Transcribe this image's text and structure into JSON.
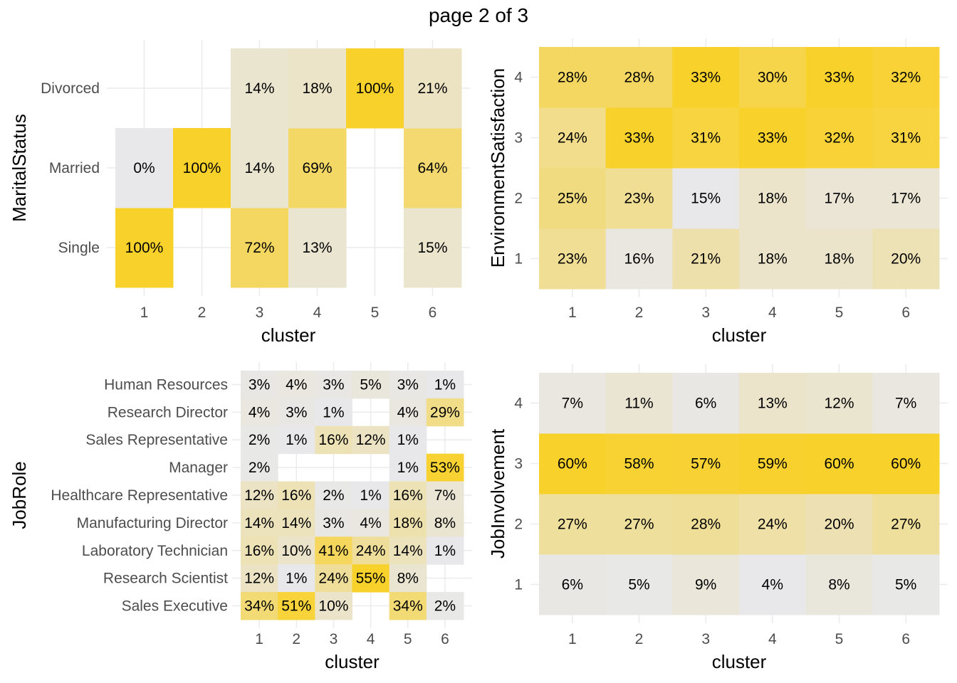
{
  "title": "page 2 of 3",
  "colors": {
    "low": "#e8e8ea",
    "high": "#f9d12b",
    "grid": "#ebebeb"
  },
  "chart_data": [
    {
      "type": "heatmap",
      "xlabel": "cluster",
      "ylabel": "MaritalStatus",
      "x": [
        "1",
        "2",
        "3",
        "4",
        "5",
        "6"
      ],
      "y": [
        "Single",
        "Married",
        "Divorced"
      ],
      "cells": [
        {
          "x": "1",
          "y": "Single",
          "value": 100,
          "label": "100%"
        },
        {
          "x": "3",
          "y": "Single",
          "value": 72,
          "label": "72%"
        },
        {
          "x": "4",
          "y": "Single",
          "value": 13,
          "label": "13%"
        },
        {
          "x": "6",
          "y": "Single",
          "value": 15,
          "label": "15%"
        },
        {
          "x": "1",
          "y": "Married",
          "value": 0,
          "label": "0%"
        },
        {
          "x": "2",
          "y": "Married",
          "value": 100,
          "label": "100%"
        },
        {
          "x": "3",
          "y": "Married",
          "value": 14,
          "label": "14%"
        },
        {
          "x": "4",
          "y": "Married",
          "value": 69,
          "label": "69%"
        },
        {
          "x": "6",
          "y": "Married",
          "value": 64,
          "label": "64%"
        },
        {
          "x": "3",
          "y": "Divorced",
          "value": 14,
          "label": "14%"
        },
        {
          "x": "4",
          "y": "Divorced",
          "value": 18,
          "label": "18%"
        },
        {
          "x": "5",
          "y": "Divorced",
          "value": 100,
          "label": "100%"
        },
        {
          "x": "6",
          "y": "Divorced",
          "value": 21,
          "label": "21%"
        }
      ]
    },
    {
      "type": "heatmap",
      "xlabel": "cluster",
      "ylabel": "EnvironmentSatisfaction",
      "x": [
        "1",
        "2",
        "3",
        "4",
        "5",
        "6"
      ],
      "y": [
        "1",
        "2",
        "3",
        "4"
      ],
      "cells": [
        {
          "x": "1",
          "y": "1",
          "value": 23,
          "label": "23%"
        },
        {
          "x": "2",
          "y": "1",
          "value": 16,
          "label": "16%"
        },
        {
          "x": "3",
          "y": "1",
          "value": 21,
          "label": "21%"
        },
        {
          "x": "4",
          "y": "1",
          "value": 18,
          "label": "18%"
        },
        {
          "x": "5",
          "y": "1",
          "value": 18,
          "label": "18%"
        },
        {
          "x": "6",
          "y": "1",
          "value": 20,
          "label": "20%"
        },
        {
          "x": "1",
          "y": "2",
          "value": 25,
          "label": "25%"
        },
        {
          "x": "2",
          "y": "2",
          "value": 23,
          "label": "23%"
        },
        {
          "x": "3",
          "y": "2",
          "value": 15,
          "label": "15%"
        },
        {
          "x": "4",
          "y": "2",
          "value": 18,
          "label": "18%"
        },
        {
          "x": "5",
          "y": "2",
          "value": 17,
          "label": "17%"
        },
        {
          "x": "6",
          "y": "2",
          "value": 17,
          "label": "17%"
        },
        {
          "x": "1",
          "y": "3",
          "value": 24,
          "label": "24%"
        },
        {
          "x": "2",
          "y": "3",
          "value": 33,
          "label": "33%"
        },
        {
          "x": "3",
          "y": "3",
          "value": 31,
          "label": "31%"
        },
        {
          "x": "4",
          "y": "3",
          "value": 33,
          "label": "33%"
        },
        {
          "x": "5",
          "y": "3",
          "value": 32,
          "label": "32%"
        },
        {
          "x": "6",
          "y": "3",
          "value": 31,
          "label": "31%"
        },
        {
          "x": "1",
          "y": "4",
          "value": 28,
          "label": "28%"
        },
        {
          "x": "2",
          "y": "4",
          "value": 28,
          "label": "28%"
        },
        {
          "x": "3",
          "y": "4",
          "value": 33,
          "label": "33%"
        },
        {
          "x": "4",
          "y": "4",
          "value": 30,
          "label": "30%"
        },
        {
          "x": "5",
          "y": "4",
          "value": 33,
          "label": "33%"
        },
        {
          "x": "6",
          "y": "4",
          "value": 32,
          "label": "32%"
        }
      ]
    },
    {
      "type": "heatmap",
      "xlabel": "cluster",
      "ylabel": "JobRole",
      "x": [
        "1",
        "2",
        "3",
        "4",
        "5",
        "6"
      ],
      "y": [
        "Sales Executive",
        "Research Scientist",
        "Laboratory Technician",
        "Manufacturing Director",
        "Healthcare Representative",
        "Manager",
        "Sales Representative",
        "Research Director",
        "Human Resources"
      ],
      "cells": [
        {
          "x": "1",
          "y": "Human Resources",
          "value": 3,
          "label": "3%"
        },
        {
          "x": "2",
          "y": "Human Resources",
          "value": 4,
          "label": "4%"
        },
        {
          "x": "3",
          "y": "Human Resources",
          "value": 3,
          "label": "3%"
        },
        {
          "x": "4",
          "y": "Human Resources",
          "value": 5,
          "label": "5%"
        },
        {
          "x": "5",
          "y": "Human Resources",
          "value": 3,
          "label": "3%"
        },
        {
          "x": "6",
          "y": "Human Resources",
          "value": 1,
          "label": "1%"
        },
        {
          "x": "1",
          "y": "Research Director",
          "value": 4,
          "label": "4%"
        },
        {
          "x": "2",
          "y": "Research Director",
          "value": 3,
          "label": "3%"
        },
        {
          "x": "3",
          "y": "Research Director",
          "value": 1,
          "label": "1%"
        },
        {
          "x": "5",
          "y": "Research Director",
          "value": 4,
          "label": "4%"
        },
        {
          "x": "6",
          "y": "Research Director",
          "value": 29,
          "label": "29%"
        },
        {
          "x": "1",
          "y": "Sales Representative",
          "value": 2,
          "label": "2%"
        },
        {
          "x": "2",
          "y": "Sales Representative",
          "value": 1,
          "label": "1%"
        },
        {
          "x": "3",
          "y": "Sales Representative",
          "value": 16,
          "label": "16%"
        },
        {
          "x": "4",
          "y": "Sales Representative",
          "value": 12,
          "label": "12%"
        },
        {
          "x": "5",
          "y": "Sales Representative",
          "value": 1,
          "label": "1%"
        },
        {
          "x": "1",
          "y": "Manager",
          "value": 2,
          "label": "2%"
        },
        {
          "x": "5",
          "y": "Manager",
          "value": 1,
          "label": "1%"
        },
        {
          "x": "6",
          "y": "Manager",
          "value": 53,
          "label": "53%"
        },
        {
          "x": "1",
          "y": "Healthcare Representative",
          "value": 12,
          "label": "12%"
        },
        {
          "x": "2",
          "y": "Healthcare Representative",
          "value": 16,
          "label": "16%"
        },
        {
          "x": "3",
          "y": "Healthcare Representative",
          "value": 2,
          "label": "2%"
        },
        {
          "x": "4",
          "y": "Healthcare Representative",
          "value": 1,
          "label": "1%"
        },
        {
          "x": "5",
          "y": "Healthcare Representative",
          "value": 16,
          "label": "16%"
        },
        {
          "x": "6",
          "y": "Healthcare Representative",
          "value": 7,
          "label": "7%"
        },
        {
          "x": "1",
          "y": "Manufacturing Director",
          "value": 14,
          "label": "14%"
        },
        {
          "x": "2",
          "y": "Manufacturing Director",
          "value": 14,
          "label": "14%"
        },
        {
          "x": "3",
          "y": "Manufacturing Director",
          "value": 3,
          "label": "3%"
        },
        {
          "x": "4",
          "y": "Manufacturing Director",
          "value": 4,
          "label": "4%"
        },
        {
          "x": "5",
          "y": "Manufacturing Director",
          "value": 18,
          "label": "18%"
        },
        {
          "x": "6",
          "y": "Manufacturing Director",
          "value": 8,
          "label": "8%"
        },
        {
          "x": "1",
          "y": "Laboratory Technician",
          "value": 16,
          "label": "16%"
        },
        {
          "x": "2",
          "y": "Laboratory Technician",
          "value": 10,
          "label": "10%"
        },
        {
          "x": "3",
          "y": "Laboratory Technician",
          "value": 41,
          "label": "41%"
        },
        {
          "x": "4",
          "y": "Laboratory Technician",
          "value": 24,
          "label": "24%"
        },
        {
          "x": "5",
          "y": "Laboratory Technician",
          "value": 14,
          "label": "14%"
        },
        {
          "x": "6",
          "y": "Laboratory Technician",
          "value": 1,
          "label": "1%"
        },
        {
          "x": "1",
          "y": "Research Scientist",
          "value": 12,
          "label": "12%"
        },
        {
          "x": "2",
          "y": "Research Scientist",
          "value": 1,
          "label": "1%"
        },
        {
          "x": "3",
          "y": "Research Scientist",
          "value": 24,
          "label": "24%"
        },
        {
          "x": "4",
          "y": "Research Scientist",
          "value": 55,
          "label": "55%"
        },
        {
          "x": "5",
          "y": "Research Scientist",
          "value": 8,
          "label": "8%"
        },
        {
          "x": "1",
          "y": "Sales Executive",
          "value": 34,
          "label": "34%"
        },
        {
          "x": "2",
          "y": "Sales Executive",
          "value": 51,
          "label": "51%"
        },
        {
          "x": "3",
          "y": "Sales Executive",
          "value": 10,
          "label": "10%"
        },
        {
          "x": "5",
          "y": "Sales Executive",
          "value": 34,
          "label": "34%"
        },
        {
          "x": "6",
          "y": "Sales Executive",
          "value": 2,
          "label": "2%"
        }
      ]
    },
    {
      "type": "heatmap",
      "xlabel": "cluster",
      "ylabel": "JobInvolvement",
      "x": [
        "1",
        "2",
        "3",
        "4",
        "5",
        "6"
      ],
      "y": [
        "1",
        "2",
        "3",
        "4"
      ],
      "cells": [
        {
          "x": "1",
          "y": "1",
          "value": 6,
          "label": "6%"
        },
        {
          "x": "2",
          "y": "1",
          "value": 5,
          "label": "5%"
        },
        {
          "x": "3",
          "y": "1",
          "value": 9,
          "label": "9%"
        },
        {
          "x": "4",
          "y": "1",
          "value": 4,
          "label": "4%"
        },
        {
          "x": "5",
          "y": "1",
          "value": 8,
          "label": "8%"
        },
        {
          "x": "6",
          "y": "1",
          "value": 5,
          "label": "5%"
        },
        {
          "x": "1",
          "y": "2",
          "value": 27,
          "label": "27%"
        },
        {
          "x": "2",
          "y": "2",
          "value": 27,
          "label": "27%"
        },
        {
          "x": "3",
          "y": "2",
          "value": 28,
          "label": "28%"
        },
        {
          "x": "4",
          "y": "2",
          "value": 24,
          "label": "24%"
        },
        {
          "x": "5",
          "y": "2",
          "value": 20,
          "label": "20%"
        },
        {
          "x": "6",
          "y": "2",
          "value": 27,
          "label": "27%"
        },
        {
          "x": "1",
          "y": "3",
          "value": 60,
          "label": "60%"
        },
        {
          "x": "2",
          "y": "3",
          "value": 58,
          "label": "58%"
        },
        {
          "x": "3",
          "y": "3",
          "value": 57,
          "label": "57%"
        },
        {
          "x": "4",
          "y": "3",
          "value": 59,
          "label": "59%"
        },
        {
          "x": "5",
          "y": "3",
          "value": 60,
          "label": "60%"
        },
        {
          "x": "6",
          "y": "3",
          "value": 60,
          "label": "60%"
        },
        {
          "x": "1",
          "y": "4",
          "value": 7,
          "label": "7%"
        },
        {
          "x": "2",
          "y": "4",
          "value": 11,
          "label": "11%"
        },
        {
          "x": "3",
          "y": "4",
          "value": 6,
          "label": "6%"
        },
        {
          "x": "4",
          "y": "4",
          "value": 13,
          "label": "13%"
        },
        {
          "x": "5",
          "y": "4",
          "value": 12,
          "label": "12%"
        },
        {
          "x": "6",
          "y": "4",
          "value": 7,
          "label": "7%"
        }
      ]
    }
  ]
}
